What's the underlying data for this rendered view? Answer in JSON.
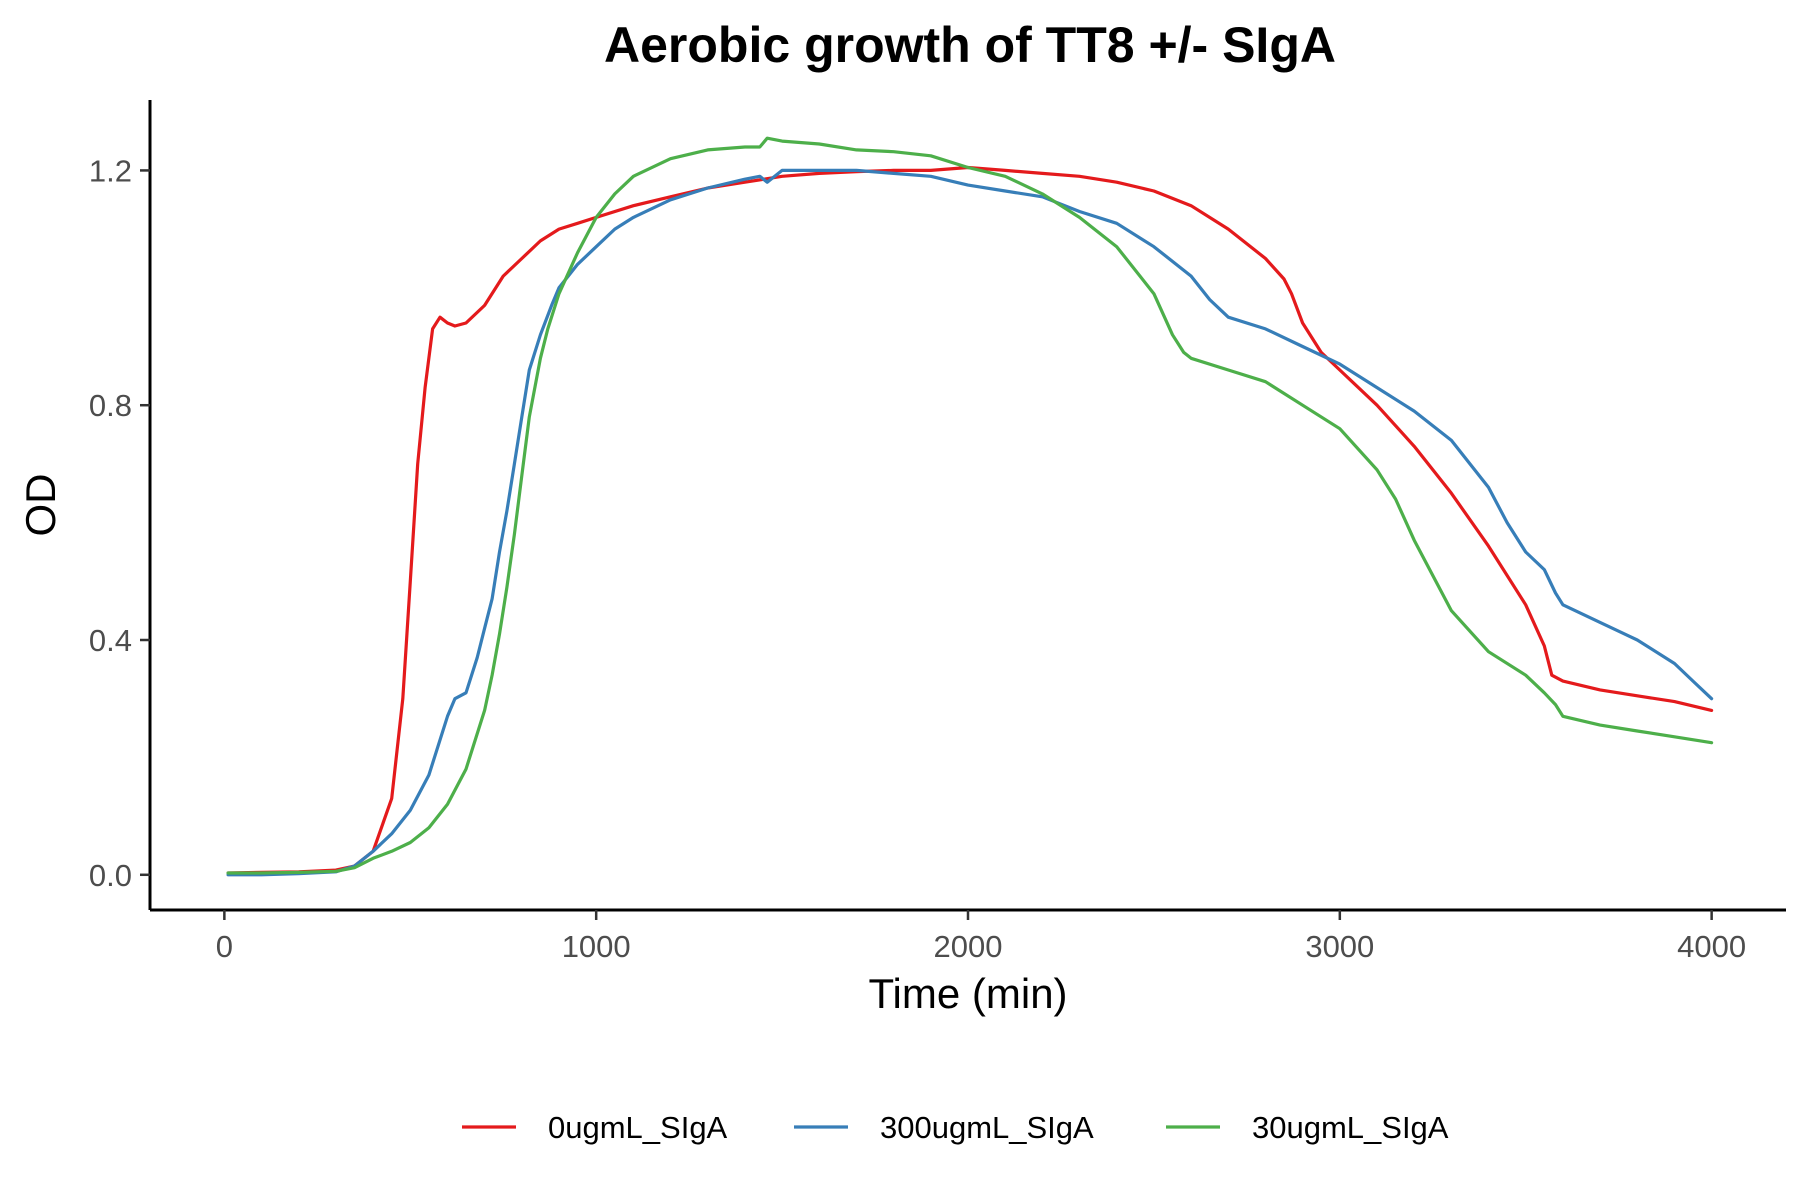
{
  "chart_data": {
    "type": "line",
    "title": "Aerobic growth of TT8 +/- SIgA",
    "xlabel": "Time (min)",
    "ylabel": "OD",
    "xlim": [
      -200,
      4200
    ],
    "ylim": [
      -0.06,
      1.32
    ],
    "xticks": [
      0,
      1000,
      2000,
      3000,
      4000
    ],
    "xtick_labels": [
      "0",
      "1000",
      "2000",
      "3000",
      "4000"
    ],
    "yticks": [
      0.0,
      0.4,
      0.8,
      1.2
    ],
    "ytick_labels": [
      "0.0",
      "0.4",
      "0.8",
      "1.2"
    ],
    "grid": false,
    "legend_position": "bottom",
    "series": [
      {
        "name": "0ugmL_SIgA",
        "color": "#E41A1C",
        "x": [
          10,
          100,
          200,
          300,
          350,
          400,
          450,
          480,
          500,
          520,
          540,
          560,
          580,
          600,
          620,
          650,
          700,
          750,
          800,
          850,
          900,
          950,
          1000,
          1100,
          1200,
          1300,
          1400,
          1500,
          1600,
          1700,
          1800,
          1900,
          2000,
          2100,
          2200,
          2300,
          2400,
          2500,
          2600,
          2700,
          2800,
          2850,
          2870,
          2900,
          2950,
          3000,
          3100,
          3200,
          3300,
          3400,
          3500,
          3550,
          3570,
          3600,
          3700,
          3800,
          3900,
          4000
        ],
        "y": [
          0.003,
          0.004,
          0.005,
          0.008,
          0.015,
          0.04,
          0.13,
          0.3,
          0.5,
          0.7,
          0.83,
          0.93,
          0.95,
          0.94,
          0.935,
          0.94,
          0.97,
          1.02,
          1.05,
          1.08,
          1.1,
          1.11,
          1.12,
          1.14,
          1.155,
          1.17,
          1.18,
          1.19,
          1.195,
          1.198,
          1.2,
          1.2,
          1.205,
          1.2,
          1.195,
          1.19,
          1.18,
          1.165,
          1.14,
          1.1,
          1.05,
          1.015,
          0.99,
          0.94,
          0.89,
          0.86,
          0.8,
          0.73,
          0.65,
          0.56,
          0.46,
          0.39,
          0.34,
          0.33,
          0.315,
          0.305,
          0.295,
          0.28
        ]
      },
      {
        "name": "300ugmL_SIgA",
        "color": "#377EB8",
        "x": [
          10,
          100,
          200,
          300,
          350,
          400,
          450,
          500,
          550,
          600,
          620,
          650,
          680,
          700,
          720,
          740,
          760,
          780,
          800,
          820,
          850,
          880,
          900,
          950,
          1000,
          1050,
          1100,
          1200,
          1300,
          1400,
          1440,
          1460,
          1500,
          1600,
          1700,
          1800,
          1900,
          2000,
          2100,
          2200,
          2300,
          2400,
          2500,
          2600,
          2650,
          2700,
          2800,
          2900,
          3000,
          3100,
          3200,
          3300,
          3400,
          3450,
          3500,
          3550,
          3580,
          3600,
          3700,
          3800,
          3900,
          3950,
          4000
        ],
        "y": [
          0.0,
          0.0,
          0.002,
          0.005,
          0.015,
          0.04,
          0.07,
          0.11,
          0.17,
          0.27,
          0.3,
          0.31,
          0.37,
          0.42,
          0.47,
          0.55,
          0.62,
          0.7,
          0.78,
          0.86,
          0.92,
          0.97,
          1.0,
          1.04,
          1.07,
          1.1,
          1.12,
          1.15,
          1.17,
          1.185,
          1.19,
          1.18,
          1.2,
          1.2,
          1.2,
          1.195,
          1.19,
          1.175,
          1.165,
          1.155,
          1.13,
          1.11,
          1.07,
          1.02,
          0.98,
          0.95,
          0.93,
          0.9,
          0.87,
          0.83,
          0.79,
          0.74,
          0.66,
          0.6,
          0.55,
          0.52,
          0.48,
          0.46,
          0.43,
          0.4,
          0.36,
          0.33,
          0.3
        ]
      },
      {
        "name": "30ugmL_SIgA",
        "color": "#4DAF4A",
        "x": [
          10,
          100,
          200,
          300,
          350,
          400,
          450,
          500,
          550,
          600,
          650,
          700,
          720,
          740,
          760,
          780,
          800,
          820,
          850,
          870,
          900,
          950,
          1000,
          1050,
          1100,
          1200,
          1300,
          1400,
          1440,
          1460,
          1500,
          1600,
          1700,
          1800,
          1900,
          2000,
          2100,
          2200,
          2300,
          2400,
          2500,
          2550,
          2580,
          2600,
          2700,
          2800,
          2900,
          3000,
          3100,
          3150,
          3200,
          3300,
          3400,
          3500,
          3550,
          3580,
          3600,
          3700,
          3800,
          3900,
          4000
        ],
        "y": [
          0.003,
          0.003,
          0.004,
          0.006,
          0.012,
          0.028,
          0.04,
          0.055,
          0.08,
          0.12,
          0.18,
          0.28,
          0.34,
          0.41,
          0.49,
          0.58,
          0.68,
          0.78,
          0.88,
          0.93,
          0.99,
          1.06,
          1.12,
          1.16,
          1.19,
          1.22,
          1.235,
          1.24,
          1.24,
          1.255,
          1.25,
          1.245,
          1.235,
          1.232,
          1.225,
          1.205,
          1.19,
          1.16,
          1.12,
          1.07,
          0.99,
          0.92,
          0.89,
          0.88,
          0.86,
          0.84,
          0.8,
          0.76,
          0.69,
          0.64,
          0.57,
          0.45,
          0.38,
          0.34,
          0.31,
          0.29,
          0.27,
          0.255,
          0.245,
          0.235,
          0.225
        ]
      }
    ]
  }
}
